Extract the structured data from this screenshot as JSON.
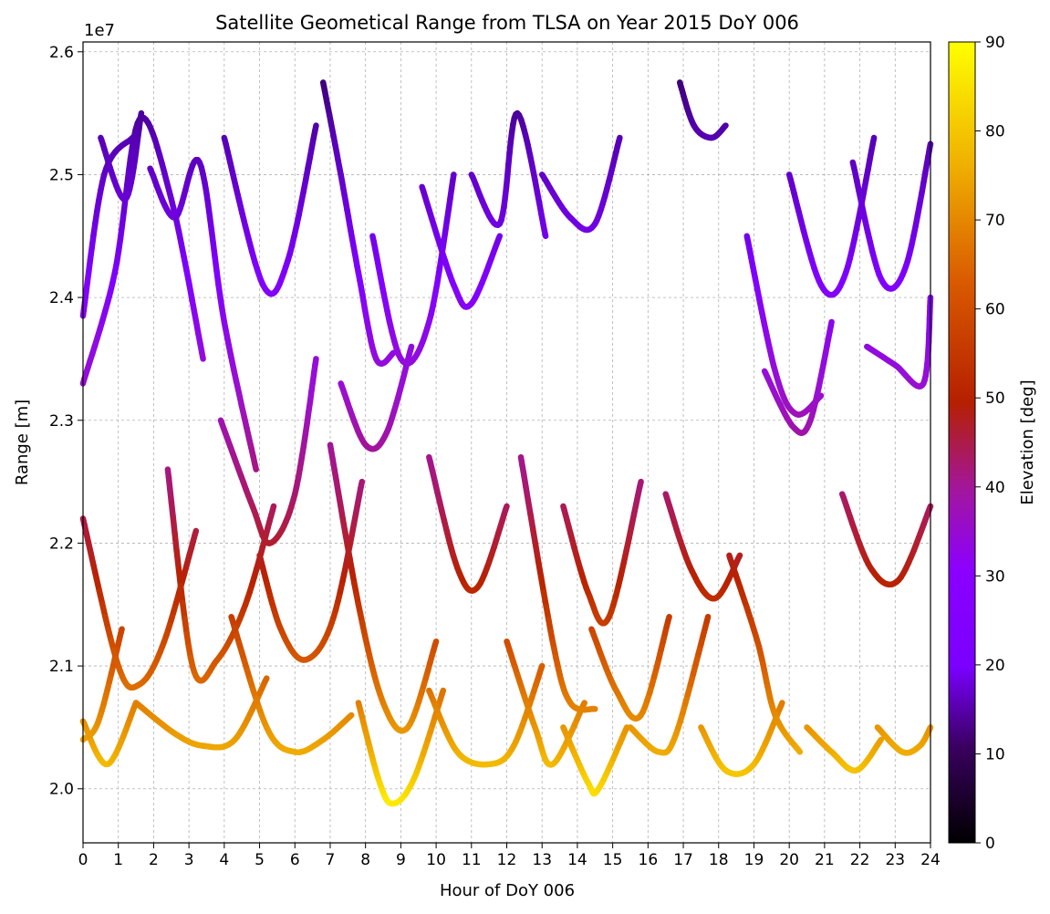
{
  "chart_data": {
    "type": "scatter",
    "title": "Satellite Geometical Range from TLSA on Year 2015 DoY 006",
    "xlabel": "Hour of DoY 006",
    "ylabel": "Range [m]",
    "y_offset_label": "1e7",
    "xlim": [
      0,
      24
    ],
    "ylim": [
      19560000,
      26080000
    ],
    "x_ticks": [
      0,
      1,
      2,
      3,
      4,
      5,
      6,
      7,
      8,
      9,
      10,
      11,
      12,
      13,
      14,
      15,
      16,
      17,
      18,
      19,
      20,
      21,
      22,
      23,
      24
    ],
    "x_tick_labels": [
      "0",
      "1",
      "2",
      "3",
      "4",
      "5",
      "6",
      "7",
      "8",
      "9",
      "10",
      "11",
      "12",
      "13",
      "14",
      "15",
      "16",
      "17",
      "18",
      "19",
      "20",
      "21",
      "22",
      "23",
      "24"
    ],
    "y_ticks": [
      20000000,
      21000000,
      22000000,
      23000000,
      24000000,
      25000000,
      26000000
    ],
    "y_tick_labels": [
      "2.0",
      "2.1",
      "2.2",
      "2.3",
      "2.4",
      "2.5",
      "2.6"
    ],
    "grid": true,
    "grid_style": "dashed",
    "colorbar": {
      "label": "Elevation [deg]",
      "colormap": "gnuplot",
      "range": [
        0,
        90
      ],
      "ticks": [
        0,
        10,
        20,
        30,
        40,
        50,
        60,
        70,
        80,
        90
      ],
      "tick_labels": [
        "0",
        "10",
        "20",
        "30",
        "40",
        "50",
        "60",
        "70",
        "80",
        "90"
      ]
    },
    "series": [
      {
        "x": [
          0.0,
          0.7,
          1.5
        ],
        "y": [
          20550000,
          20200000,
          20700000
        ]
      },
      {
        "x": [
          0.0,
          0.45,
          1.1
        ],
        "y": [
          20400000,
          20560000,
          21300000
        ]
      },
      {
        "x": [
          0.0,
          0.9,
          1.6,
          2.5,
          3.4
        ],
        "y": [
          23300000,
          24200000,
          25450000,
          24800000,
          23500000
        ]
      },
      {
        "x": [
          0.0,
          0.6,
          1.4
        ],
        "y": [
          23850000,
          25000000,
          25300000
        ]
      },
      {
        "x": [
          0.0,
          1.0,
          1.6,
          2.3,
          3.2
        ],
        "y": [
          22200000,
          21000000,
          20850000,
          21200000,
          22100000
        ]
      },
      {
        "x": [
          0.5,
          1.2,
          1.65
        ],
        "y": [
          25300000,
          24800000,
          25500000
        ]
      },
      {
        "x": [
          1.9,
          2.6,
          3.3,
          4.0,
          4.9
        ],
        "y": [
          25050000,
          24650000,
          25100000,
          23800000,
          22600000
        ]
      },
      {
        "x": [
          2.4,
          3.1,
          3.8,
          4.6,
          5.4
        ],
        "y": [
          22600000,
          21000000,
          21050000,
          21500000,
          22300000
        ]
      },
      {
        "x": [
          1.5,
          2.6,
          3.4,
          4.3,
          5.2
        ],
        "y": [
          20700000,
          20450000,
          20350000,
          20400000,
          20900000
        ]
      },
      {
        "x": [
          4.0,
          5.1,
          5.8,
          6.6
        ],
        "y": [
          25300000,
          24100000,
          24300000,
          25400000
        ]
      },
      {
        "x": [
          3.9,
          4.8,
          5.3,
          6.0,
          6.6
        ],
        "y": [
          23000000,
          22300000,
          22000000,
          22400000,
          23500000
        ]
      },
      {
        "x": [
          5.0,
          5.6,
          6.3,
          7.1,
          7.9
        ],
        "y": [
          21900000,
          21300000,
          21050000,
          21400000,
          22500000
        ]
      },
      {
        "x": [
          4.2,
          5.2,
          6.0,
          6.8,
          7.6
        ],
        "y": [
          21400000,
          20500000,
          20300000,
          20400000,
          20600000
        ]
      },
      {
        "x": [
          6.8,
          7.3,
          7.8,
          8.3,
          8.8
        ],
        "y": [
          25750000,
          25000000,
          24200000,
          23500000,
          23550000
        ]
      },
      {
        "x": [
          7.3,
          8.0,
          8.6,
          9.3
        ],
        "y": [
          23300000,
          22800000,
          22900000,
          23600000
        ]
      },
      {
        "x": [
          7.0,
          7.8,
          8.5,
          9.2,
          10.0
        ],
        "y": [
          22800000,
          21500000,
          20700000,
          20500000,
          21200000
        ]
      },
      {
        "x": [
          7.8,
          8.4,
          8.8,
          9.4,
          10.2
        ],
        "y": [
          20700000,
          20050000,
          19880000,
          20100000,
          20800000
        ]
      },
      {
        "x": [
          8.2,
          9.0,
          9.8,
          10.5
        ],
        "y": [
          24500000,
          23500000,
          23800000,
          25000000
        ]
      },
      {
        "x": [
          9.6,
          10.5,
          11.0,
          11.8
        ],
        "y": [
          24900000,
          24100000,
          23950000,
          24500000
        ]
      },
      {
        "x": [
          9.8,
          10.6,
          11.2,
          12.0
        ],
        "y": [
          22700000,
          21800000,
          21650000,
          22300000
        ]
      },
      {
        "x": [
          9.8,
          10.6,
          11.5,
          12.2,
          13.0
        ],
        "y": [
          20800000,
          20300000,
          20200000,
          20350000,
          21000000
        ]
      },
      {
        "x": [
          11.0,
          11.8,
          12.3,
          13.1
        ],
        "y": [
          25000000,
          24600000,
          25500000,
          24500000
        ]
      },
      {
        "x": [
          12.0,
          12.8,
          13.3,
          14.2
        ],
        "y": [
          21200000,
          20500000,
          20200000,
          20700000
        ]
      },
      {
        "x": [
          12.4,
          13.3,
          13.8,
          14.5
        ],
        "y": [
          22700000,
          21200000,
          20700000,
          20650000
        ]
      },
      {
        "x": [
          13.0,
          13.8,
          14.5,
          15.2
        ],
        "y": [
          25000000,
          24650000,
          24600000,
          25300000
        ]
      },
      {
        "x": [
          13.6,
          14.3,
          14.9,
          15.8
        ],
        "y": [
          22300000,
          21600000,
          21400000,
          22500000
        ]
      },
      {
        "x": [
          13.6,
          14.3,
          14.6,
          15.4
        ],
        "y": [
          20500000,
          20050000,
          20000000,
          20500000
        ]
      },
      {
        "x": [
          14.4,
          15.1,
          15.8,
          16.6
        ],
        "y": [
          21300000,
          20800000,
          20600000,
          21400000
        ]
      },
      {
        "x": [
          15.5,
          16.3,
          16.8,
          17.7
        ],
        "y": [
          20500000,
          20300000,
          20450000,
          21400000
        ]
      },
      {
        "x": [
          16.9,
          17.3,
          17.8,
          18.2
        ],
        "y": [
          25750000,
          25400000,
          25300000,
          25400000
        ]
      },
      {
        "x": [
          16.5,
          17.2,
          17.9,
          18.6
        ],
        "y": [
          22400000,
          21800000,
          21550000,
          21900000
        ]
      },
      {
        "x": [
          17.5,
          18.2,
          19.0,
          19.8
        ],
        "y": [
          20500000,
          20150000,
          20200000,
          20700000
        ]
      },
      {
        "x": [
          18.3,
          19.1,
          19.6,
          20.3
        ],
        "y": [
          21900000,
          21200000,
          20600000,
          20300000
        ]
      },
      {
        "x": [
          18.8,
          19.6,
          20.2,
          20.9
        ],
        "y": [
          24500000,
          23400000,
          23050000,
          23200000
        ]
      },
      {
        "x": [
          19.3,
          20.1,
          20.6,
          21.2
        ],
        "y": [
          23400000,
          22950000,
          23000000,
          23800000
        ]
      },
      {
        "x": [
          20.0,
          20.9,
          21.6,
          22.4
        ],
        "y": [
          25000000,
          24100000,
          24200000,
          25300000
        ]
      },
      {
        "x": [
          20.5,
          21.2,
          21.9,
          22.6
        ],
        "y": [
          20500000,
          20300000,
          20150000,
          20400000
        ]
      },
      {
        "x": [
          21.5,
          22.3,
          23.1,
          24.0
        ],
        "y": [
          22400000,
          21800000,
          21700000,
          22300000
        ]
      },
      {
        "x": [
          21.8,
          22.6,
          23.3,
          24.0
        ],
        "y": [
          25100000,
          24150000,
          24250000,
          25250000
        ]
      },
      {
        "x": [
          22.2,
          23.0,
          23.8,
          24.0
        ],
        "y": [
          23600000,
          23450000,
          23300000,
          24000000
        ]
      },
      {
        "x": [
          22.5,
          23.2,
          23.7,
          24.0
        ],
        "y": [
          20500000,
          20300000,
          20350000,
          20500000
        ]
      }
    ]
  }
}
